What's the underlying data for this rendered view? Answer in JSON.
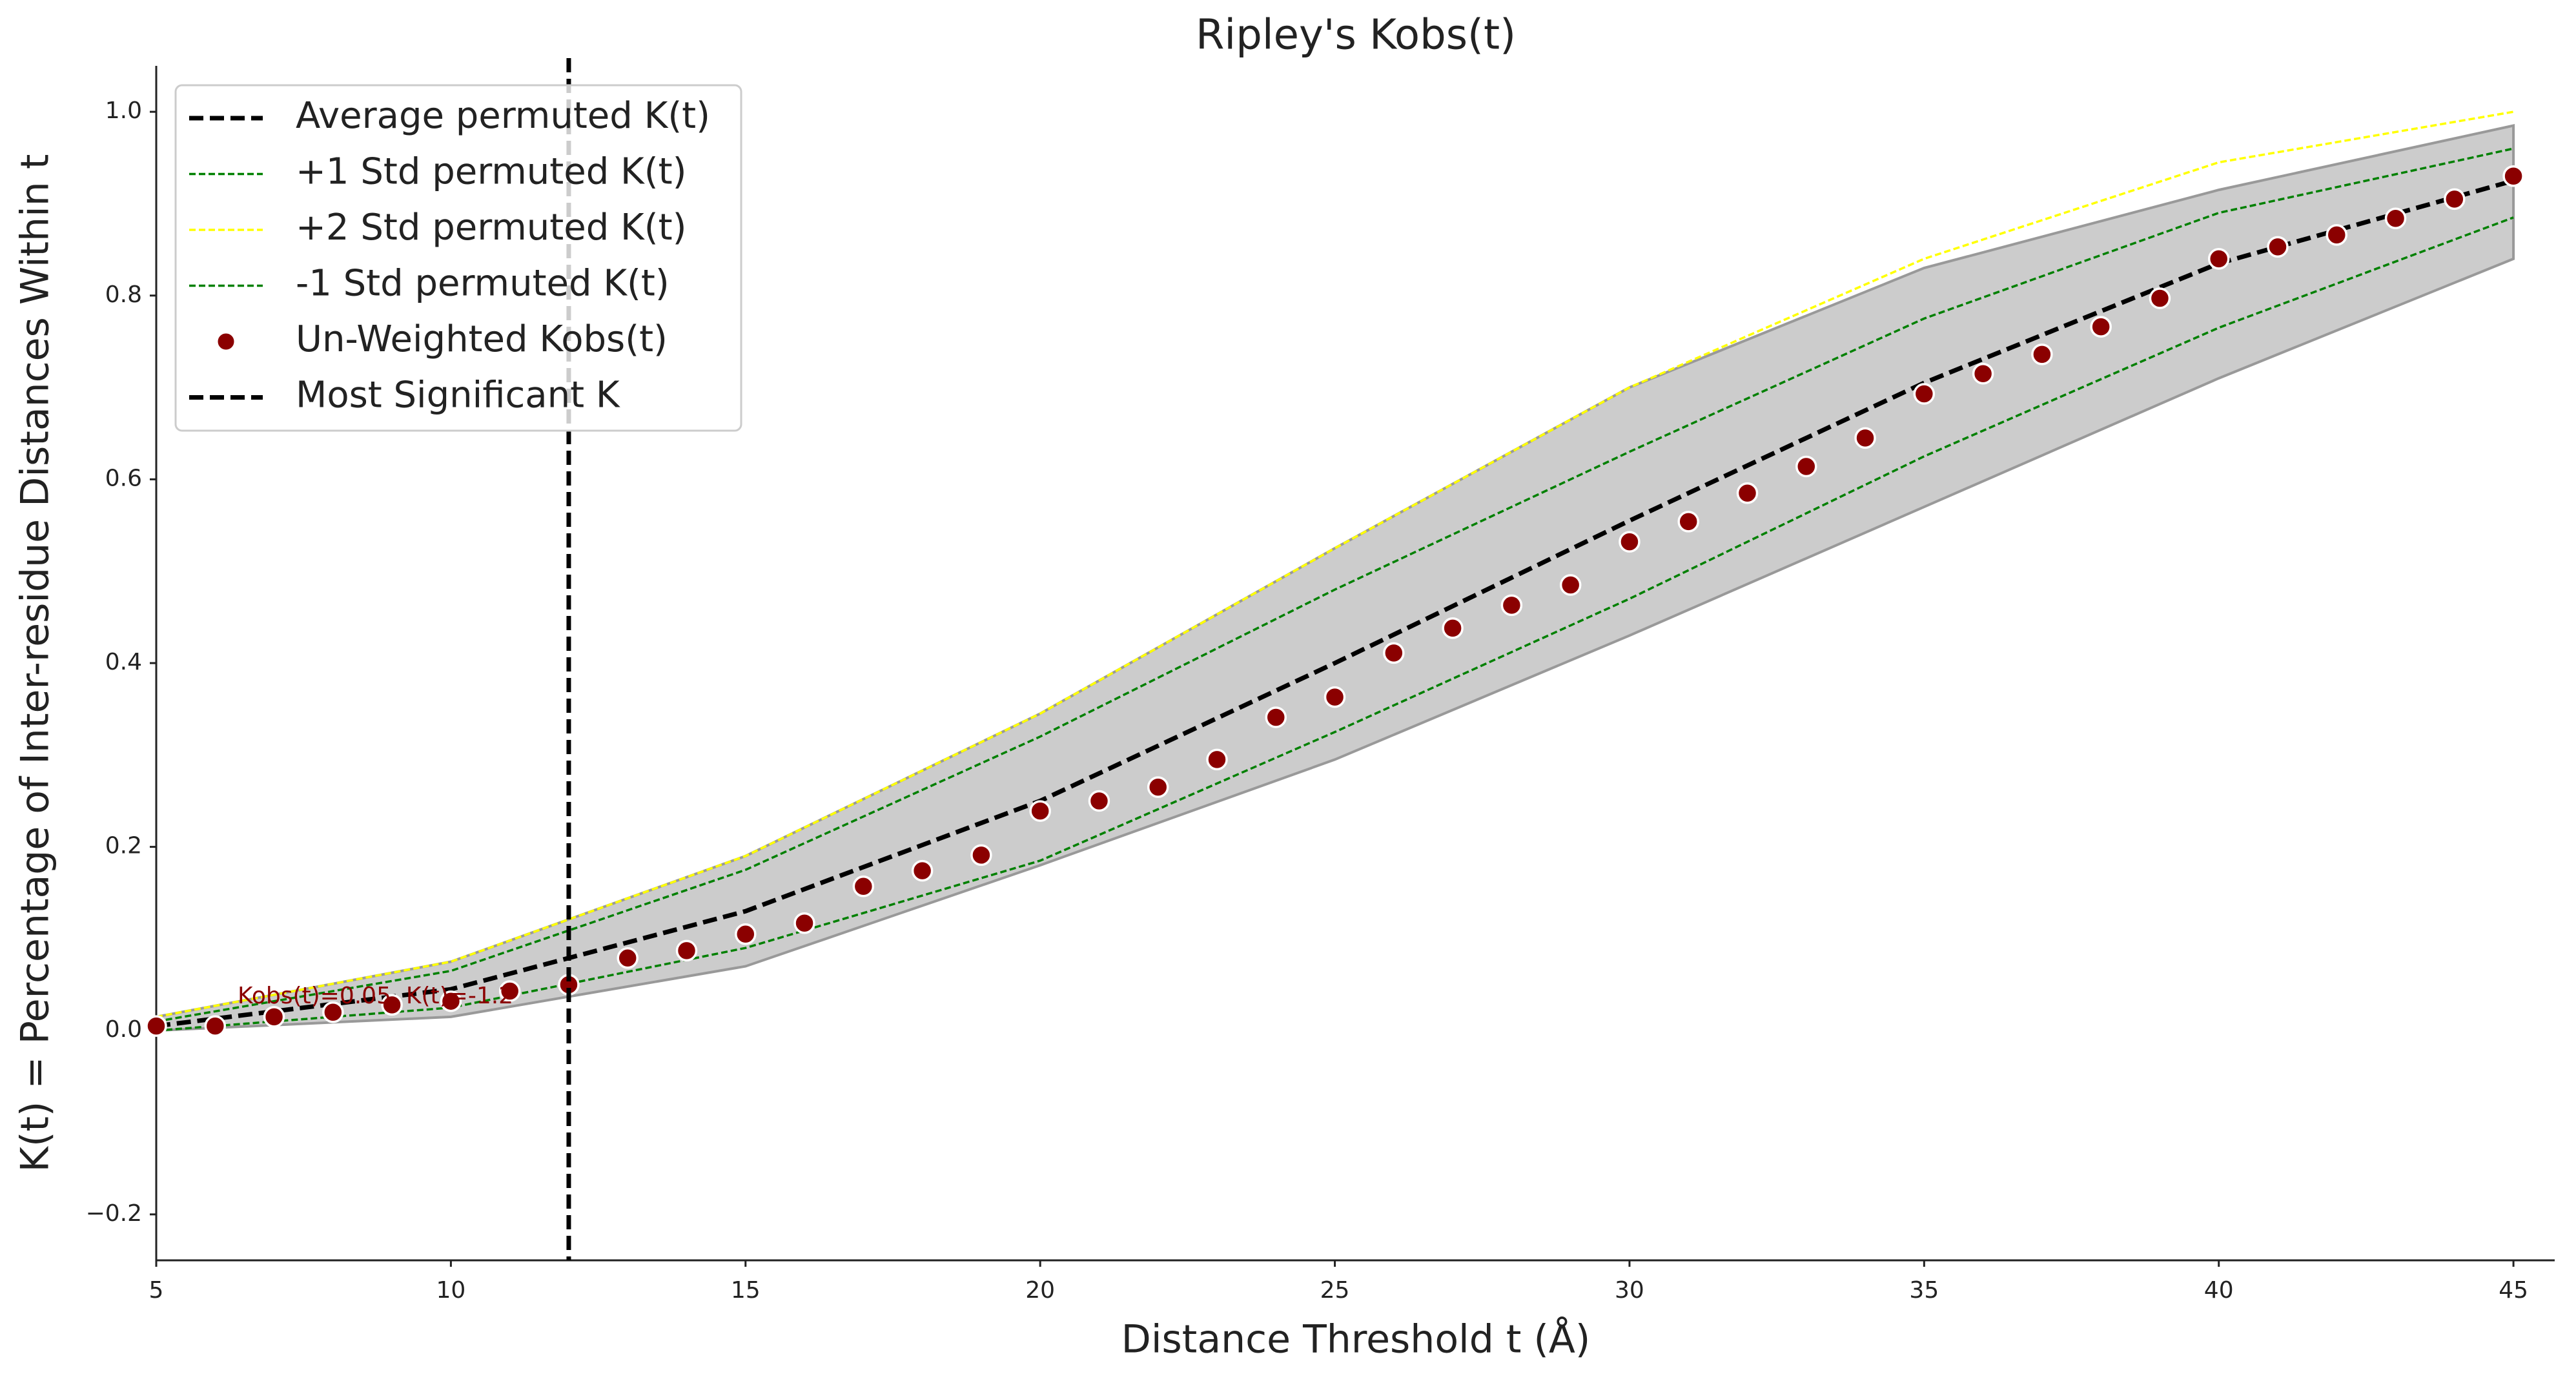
{
  "chart_data": {
    "type": "line",
    "title": "Ripley's Kobs(t)",
    "xlabel": "Distance Threshold t (Å)",
    "ylabel": "K(t) = Percentage of Inter-residue Distances Within t",
    "xlim": [
      5,
      45.7
    ],
    "ylim": [
      -0.25,
      1.05
    ],
    "xticks": [
      5,
      10,
      15,
      20,
      25,
      30,
      35,
      40,
      45
    ],
    "yticks": [
      {
        "value": -0.2,
        "label": "−0.2"
      },
      {
        "value": 0,
        "label": "0.0"
      },
      {
        "value": 0.2,
        "label": "0.2"
      },
      {
        "value": 0.4,
        "label": "0.4"
      },
      {
        "value": 0.6,
        "label": "0.6"
      },
      {
        "value": 0.8,
        "label": "0.8"
      },
      {
        "value": 1,
        "label": "1.0"
      }
    ],
    "grid": false,
    "legend": "upper left",
    "band": {
      "color": "#999999",
      "x": [
        5,
        10,
        15,
        20,
        25,
        30,
        35,
        40,
        45
      ],
      "lower": [
        0,
        0.015,
        0.07,
        0.18,
        0.295,
        0.43,
        0.57,
        0.71,
        0.84
      ],
      "upper": [
        0.015,
        0.075,
        0.19,
        0.345,
        0.525,
        0.7,
        0.83,
        0.915,
        0.985
      ]
    },
    "series": [
      {
        "name": "Average permuted K(t)",
        "color": "#000000",
        "style": "dashed-thick",
        "x": [
          5,
          10,
          15,
          20,
          25,
          30,
          35,
          40,
          45
        ],
        "values": [
          0.005,
          0.045,
          0.13,
          0.25,
          0.4,
          0.555,
          0.705,
          0.835,
          0.925
        ]
      },
      {
        "name": "+1 Std permuted K(t)",
        "color": "#008000",
        "style": "dashed",
        "x": [
          5,
          10,
          15,
          20,
          25,
          30,
          35,
          40,
          45
        ],
        "values": [
          0.01,
          0.065,
          0.175,
          0.32,
          0.48,
          0.63,
          0.775,
          0.89,
          0.96
        ]
      },
      {
        "name": "+2 Std permuted K(t)",
        "color": "#ffff00",
        "style": "dashed",
        "x": [
          5,
          10,
          15,
          20,
          25,
          30,
          35,
          40,
          45
        ],
        "values": [
          0.015,
          0.075,
          0.19,
          0.345,
          0.525,
          0.7,
          0.84,
          0.945,
          1.0
        ]
      },
      {
        "name": "-1 Std permuted K(t)",
        "color": "#008000",
        "style": "dashed",
        "x": [
          5,
          10,
          15,
          20,
          25,
          30,
          35,
          40,
          45
        ],
        "values": [
          0,
          0.025,
          0.09,
          0.185,
          0.325,
          0.47,
          0.625,
          0.765,
          0.885
        ]
      },
      {
        "name": "Un-Weighted Kobs(t)",
        "color": "#8b0000",
        "style": "scatter",
        "x": [
          5,
          6,
          7,
          8,
          9,
          10,
          11,
          12,
          13,
          14,
          15,
          16,
          17,
          18,
          19,
          20,
          21,
          22,
          23,
          24,
          25,
          26,
          27,
          28,
          29,
          30,
          31,
          32,
          33,
          34,
          35,
          36,
          37,
          38,
          39,
          40,
          41,
          42,
          43,
          44,
          45
        ],
        "values": [
          0.005,
          0.005,
          0.015,
          0.02,
          0.028,
          0.032,
          0.043,
          0.05,
          0.079,
          0.087,
          0.105,
          0.117,
          0.157,
          0.174,
          0.191,
          0.239,
          0.25,
          0.265,
          0.295,
          0.341,
          0.363,
          0.411,
          0.438,
          0.463,
          0.485,
          0.532,
          0.554,
          0.585,
          0.614,
          0.645,
          0.693,
          0.715,
          0.736,
          0.766,
          0.797,
          0.84,
          0.853,
          0.866,
          0.884,
          0.905,
          0.93
        ]
      },
      {
        "name": "Most Significant K",
        "color": "#000000",
        "style": "vline",
        "x": 12
      }
    ],
    "annotation": "Kobs(t)=0.05, K(t)=-1.2"
  }
}
